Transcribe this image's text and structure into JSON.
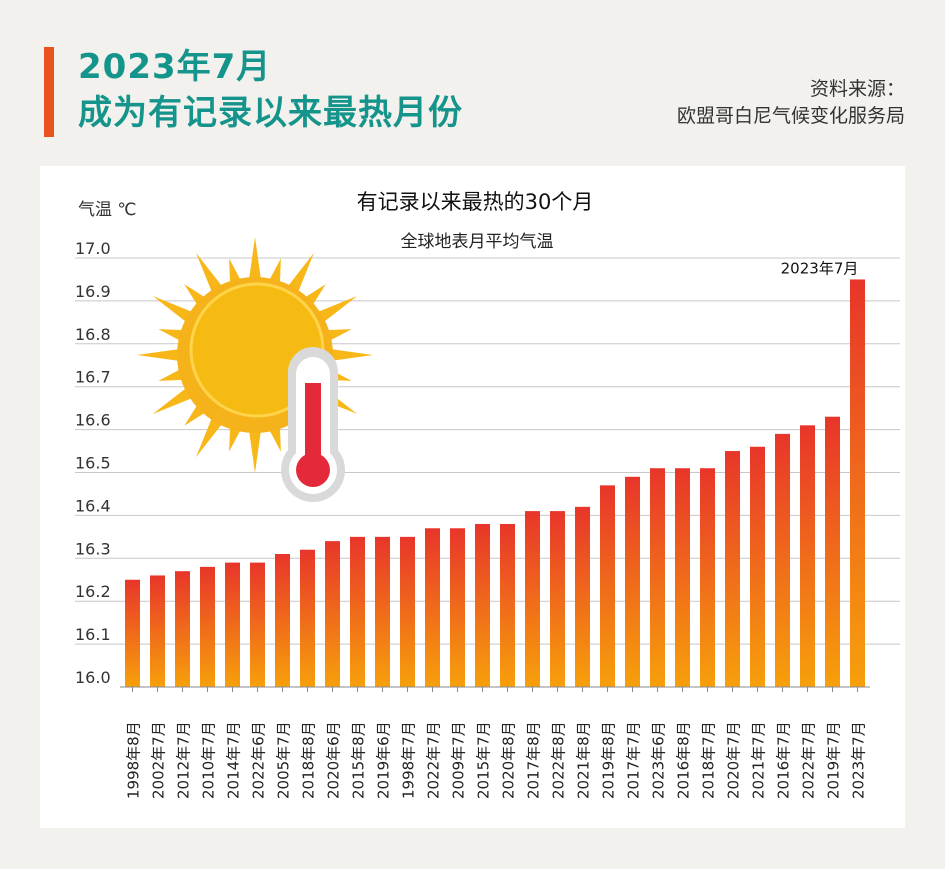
{
  "header": {
    "title_line1": "2023年7月",
    "title_line2": "成为有记录以来最热月份",
    "source_line1": "资料来源：",
    "source_line2": "欧盟哥白尼气候变化服务局"
  },
  "colors": {
    "accent": "#e8531f",
    "title": "#14948a",
    "bar_top": "#e8352a",
    "bar_bottom": "#f7a00b",
    "highlight_top": "#e42a2a"
  },
  "icons": [
    "sun-icon",
    "thermometer-icon"
  ],
  "chart_data": {
    "type": "bar",
    "title": "有记录以来最热的30个月",
    "subtitle": "全球地表月平均气温",
    "ylabel": "气温 ℃",
    "ylim": [
      16.0,
      17.0
    ],
    "yticks": [
      "16.0",
      "16.1",
      "16.2",
      "16.3",
      "16.4",
      "16.5",
      "16.6",
      "16.7",
      "16.8",
      "16.9",
      "17.0"
    ],
    "grid": true,
    "categories": [
      "1998年8月",
      "2002年7月",
      "2012年7月",
      "2010年7月",
      "2014年7月",
      "2022年6月",
      "2005年7月",
      "2018年8月",
      "2020年6月",
      "2015年8月",
      "2019年6月",
      "1998年7月",
      "2022年7月",
      "2009年7月",
      "2015年7月",
      "2020年8月",
      "2017年8月",
      "2022年8月",
      "2021年8月",
      "2019年8月",
      "2017年7月",
      "2023年6月",
      "2016年8月",
      "2018年7月",
      "2020年7月",
      "2021年7月",
      "2016年7月",
      "2022年7月",
      "2019年7月",
      "2023年7月"
    ],
    "values": [
      16.25,
      16.26,
      16.27,
      16.28,
      16.29,
      16.29,
      16.31,
      16.32,
      16.34,
      16.35,
      16.35,
      16.35,
      16.37,
      16.37,
      16.38,
      16.38,
      16.41,
      16.41,
      16.42,
      16.47,
      16.49,
      16.51,
      16.51,
      16.51,
      16.55,
      16.56,
      16.59,
      16.61,
      16.63,
      16.95
    ],
    "annotation": "2023年7月"
  }
}
